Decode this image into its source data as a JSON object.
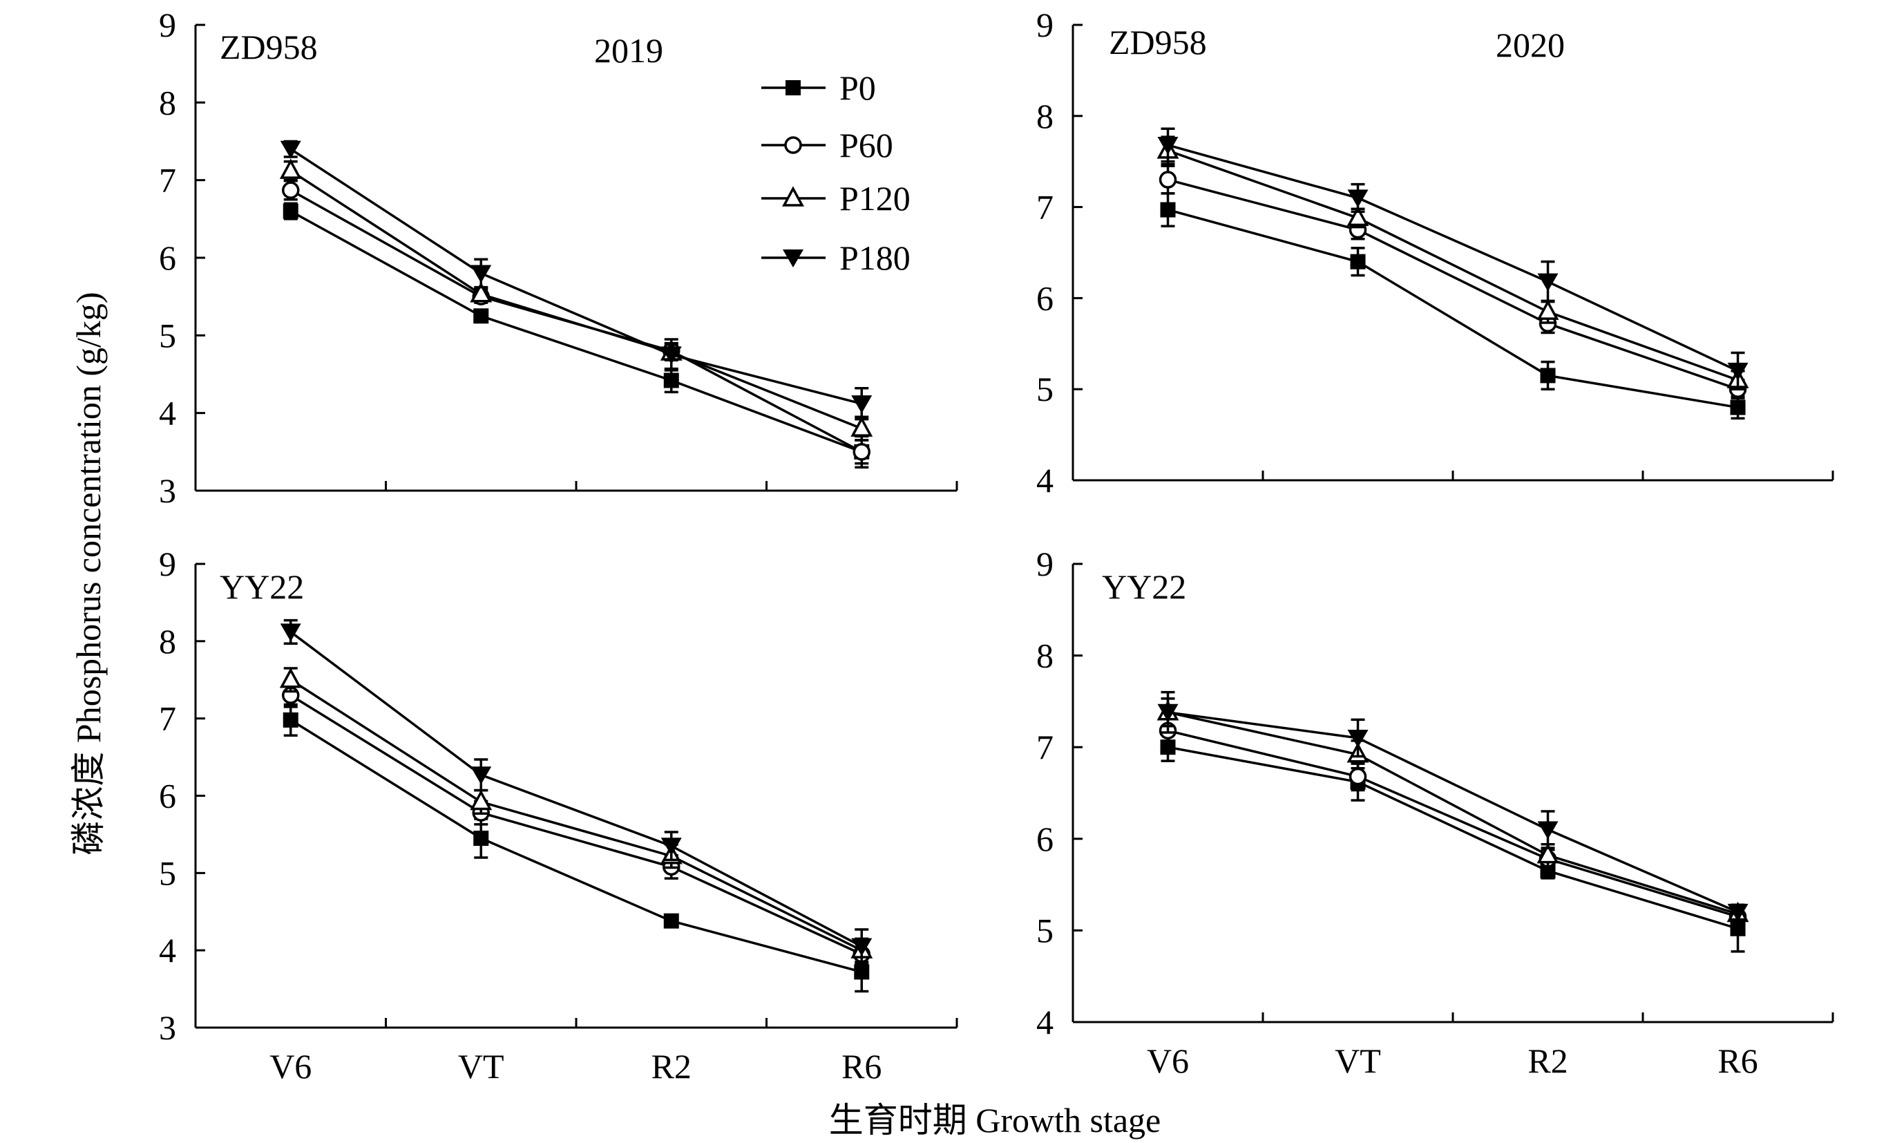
{
  "figure": {
    "y_title": "磷浓度 Phosphorus concentration (g/kg)",
    "x_title": "生育时期 Growth stage"
  },
  "colors": {
    "ink": "#000000",
    "background": "#ffffff"
  },
  "chart_data": [
    {
      "type": "line",
      "cultivar": "ZD958",
      "year": "2019",
      "categories": [
        "V6",
        "VT",
        "R2",
        "R6"
      ],
      "ylim": [
        3,
        9
      ],
      "yticks": [
        "3",
        "4",
        "5",
        "6",
        "7",
        "8",
        "9"
      ],
      "show_xticks": false,
      "legend": "top-right",
      "series": [
        {
          "name": "P0",
          "marker": "square-filled",
          "values": [
            6.6,
            5.25,
            4.42,
            3.5
          ],
          "errors": [
            0.1,
            0.08,
            0.15,
            0.2
          ]
        },
        {
          "name": "P60",
          "marker": "circle-open",
          "values": [
            6.87,
            5.5,
            4.8,
            3.5
          ],
          "errors": [
            0.12,
            0.08,
            0.1,
            0.15
          ]
        },
        {
          "name": "P120",
          "marker": "triangle-open",
          "values": [
            7.12,
            5.53,
            4.78,
            3.8
          ],
          "errors": [
            0.12,
            0.08,
            0.1,
            0.15
          ]
        },
        {
          "name": "P180",
          "marker": "triangle-down-filled",
          "values": [
            7.4,
            5.8,
            4.75,
            4.12
          ],
          "errors": [
            0.1,
            0.18,
            0.2,
            0.2
          ]
        }
      ]
    },
    {
      "type": "line",
      "cultivar": "ZD958",
      "year": "2020",
      "categories": [
        "V6",
        "VT",
        "R2",
        "R6"
      ],
      "ylim": [
        4,
        9
      ],
      "yticks": [
        "4",
        "5",
        "6",
        "7",
        "8",
        "9"
      ],
      "show_xticks": false,
      "series": [
        {
          "name": "P0",
          "marker": "square-filled",
          "values": [
            6.97,
            6.4,
            5.15,
            4.8
          ],
          "errors": [
            0.18,
            0.15,
            0.15,
            0.12
          ]
        },
        {
          "name": "P60",
          "marker": "circle-open",
          "values": [
            7.3,
            6.75,
            5.72,
            5.0
          ],
          "errors": [
            0.15,
            0.1,
            0.1,
            0.1
          ]
        },
        {
          "name": "P120",
          "marker": "triangle-open",
          "values": [
            7.62,
            6.88,
            5.85,
            5.1
          ],
          "errors": [
            0.15,
            0.1,
            0.12,
            0.1
          ]
        },
        {
          "name": "P180",
          "marker": "triangle-down-filled",
          "values": [
            7.68,
            7.1,
            6.18,
            5.2
          ],
          "errors": [
            0.18,
            0.15,
            0.22,
            0.2
          ]
        }
      ]
    },
    {
      "type": "line",
      "cultivar": "YY22",
      "year": "",
      "categories": [
        "V6",
        "VT",
        "R2",
        "R6"
      ],
      "ylim": [
        3,
        9
      ],
      "yticks": [
        "3",
        "4",
        "5",
        "6",
        "7",
        "8",
        "9"
      ],
      "show_xticks": true,
      "series": [
        {
          "name": "P0",
          "marker": "square-filled",
          "values": [
            6.98,
            5.45,
            4.38,
            3.72
          ],
          "errors": [
            0.2,
            0.25,
            0.05,
            0.25
          ]
        },
        {
          "name": "P60",
          "marker": "circle-open",
          "values": [
            7.3,
            5.78,
            5.08,
            3.95
          ],
          "errors": [
            0.15,
            0.15,
            0.15,
            0.15
          ]
        },
        {
          "name": "P120",
          "marker": "triangle-open",
          "values": [
            7.5,
            5.92,
            5.22,
            4.0
          ],
          "errors": [
            0.15,
            0.15,
            0.15,
            0.15
          ]
        },
        {
          "name": "P180",
          "marker": "triangle-down-filled",
          "values": [
            8.12,
            6.27,
            5.35,
            4.05
          ],
          "errors": [
            0.15,
            0.2,
            0.18,
            0.22
          ]
        }
      ]
    },
    {
      "type": "line",
      "cultivar": "YY22",
      "year": "",
      "categories": [
        "V6",
        "VT",
        "R2",
        "R6"
      ],
      "ylim": [
        4,
        9
      ],
      "yticks": [
        "4",
        "5",
        "6",
        "7",
        "8",
        "9"
      ],
      "show_xticks": true,
      "series": [
        {
          "name": "P0",
          "marker": "square-filled",
          "values": [
            7.0,
            6.62,
            5.65,
            5.02
          ],
          "errors": [
            0.15,
            0.2,
            0.08,
            0.25
          ]
        },
        {
          "name": "P60",
          "marker": "circle-open",
          "values": [
            7.18,
            6.68,
            5.78,
            5.15
          ],
          "errors": [
            0.15,
            0.15,
            0.1,
            0.1
          ]
        },
        {
          "name": "P120",
          "marker": "triangle-open",
          "values": [
            7.38,
            6.92,
            5.82,
            5.18
          ],
          "errors": [
            0.15,
            0.15,
            0.12,
            0.1
          ]
        },
        {
          "name": "P180",
          "marker": "triangle-down-filled",
          "values": [
            7.38,
            7.1,
            6.1,
            5.2
          ],
          "errors": [
            0.22,
            0.2,
            0.2,
            0.08
          ]
        }
      ]
    }
  ]
}
